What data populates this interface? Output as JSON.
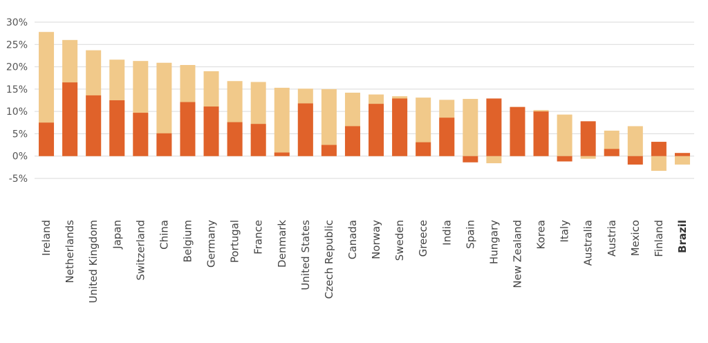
{
  "chart_data": {
    "type": "bar",
    "stacking": "overlay",
    "categories": [
      "Ireland",
      "Netherlands",
      "United Kingdom",
      "Japan",
      "Switzerland",
      "China",
      "Belgium",
      "Germany",
      "Portugal",
      "France",
      "Denmark",
      "United States",
      "Czech Republic",
      "Canada",
      "Norway",
      "Sweden",
      "Greece",
      "India",
      "Spain",
      "Hungary",
      "New Zealand",
      "Korea",
      "Italy",
      "Australia",
      "Austria",
      "Mexico",
      "Finland",
      "Brazil"
    ],
    "highlight_category": "Brazil",
    "series": [
      {
        "color": "#f1c98a",
        "values": [
          27.8,
          26.0,
          23.7,
          21.6,
          21.3,
          20.9,
          20.4,
          19.0,
          16.8,
          16.6,
          15.3,
          15.1,
          15.0,
          14.2,
          13.8,
          13.4,
          13.1,
          12.6,
          12.8,
          -1.6,
          11.0,
          10.3,
          9.3,
          -0.6,
          5.7,
          6.7,
          -3.3,
          -1.9
        ]
      },
      {
        "color": "#e0622a",
        "values": [
          7.5,
          16.5,
          13.6,
          12.5,
          9.7,
          5.1,
          12.1,
          11.1,
          7.6,
          7.2,
          0.8,
          11.8,
          2.5,
          6.7,
          11.7,
          12.9,
          3.1,
          8.6,
          -1.4,
          12.9,
          11.0,
          10.0,
          -1.2,
          7.8,
          1.6,
          -1.9,
          3.2,
          0.7
        ]
      }
    ],
    "yticks": [
      -5,
      0,
      5,
      10,
      15,
      20,
      25,
      30
    ],
    "ytick_labels": [
      "-5%",
      "0%",
      "5%",
      "10%",
      "15%",
      "20%",
      "25%",
      "30%"
    ],
    "ylim": [
      -5,
      30
    ],
    "grid": true
  }
}
